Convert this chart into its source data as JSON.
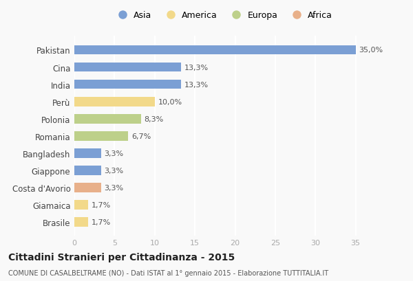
{
  "countries": [
    "Pakistan",
    "Cina",
    "India",
    "Perù",
    "Polonia",
    "Romania",
    "Bangladesh",
    "Giappone",
    "Costa d'Avorio",
    "Giamaica",
    "Brasile"
  ],
  "values": [
    35.0,
    13.3,
    13.3,
    10.0,
    8.3,
    6.7,
    3.3,
    3.3,
    3.3,
    1.7,
    1.7
  ],
  "labels": [
    "35,0%",
    "13,3%",
    "13,3%",
    "10,0%",
    "8,3%",
    "6,7%",
    "3,3%",
    "3,3%",
    "3,3%",
    "1,7%",
    "1,7%"
  ],
  "continents": [
    "Asia",
    "Asia",
    "Asia",
    "America",
    "Europa",
    "Europa",
    "Asia",
    "Asia",
    "Africa",
    "America",
    "America"
  ],
  "colors": {
    "Asia": "#7b9fd4",
    "America": "#f2d98a",
    "Europa": "#bdd08a",
    "Africa": "#e8b08a"
  },
  "legend_order": [
    "Asia",
    "America",
    "Europa",
    "Africa"
  ],
  "xlim": [
    0,
    37
  ],
  "xticks": [
    0,
    5,
    10,
    15,
    20,
    25,
    30,
    35
  ],
  "title": "Cittadini Stranieri per Cittadinanza - 2015",
  "subtitle": "COMUNE DI CASALBELTRAME (NO) - Dati ISTAT al 1° gennaio 2015 - Elaborazione TUTTITALIA.IT",
  "background_color": "#f9f9f9",
  "grid_color": "#ffffff",
  "bar_height": 0.55
}
